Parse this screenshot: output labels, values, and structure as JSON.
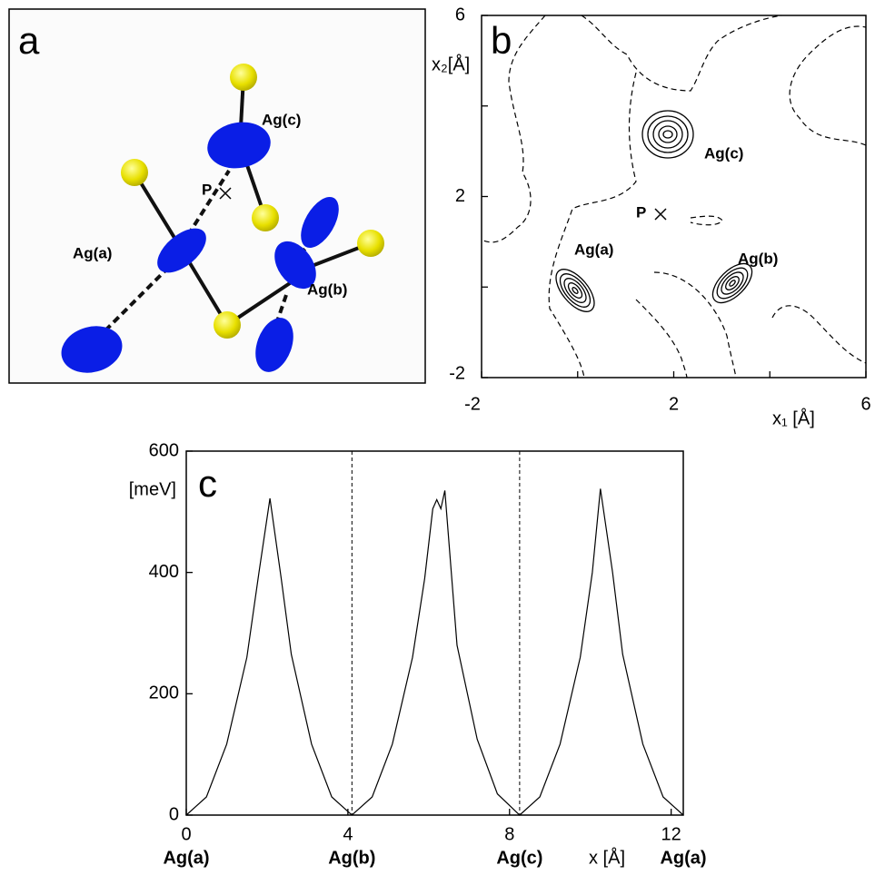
{
  "panel_a": {
    "label": "a",
    "atoms": [
      "Ag(a)",
      "Ag(b)",
      "Ag(c)",
      "P"
    ]
  },
  "chart_data": [
    {
      "type": "contour",
      "panel_label": "b",
      "xlabel": "x₁ [Å]",
      "ylabel": "x₂[Å]",
      "xlim": [
        -2,
        6
      ],
      "ylim": [
        -2,
        6
      ],
      "xticks": [
        -2,
        {
          "value": 0,
          "label": null
        },
        2,
        {
          "value": 4,
          "label": null
        },
        6
      ],
      "yticks": [
        -2,
        {
          "value": 0,
          "label": null
        },
        2,
        {
          "value": 4,
          "label": null
        },
        6
      ],
      "annotations": [
        "Ag(a)",
        "Ag(b)",
        "Ag(c)",
        "P"
      ]
    },
    {
      "type": "line",
      "panel_label": "c",
      "ylabel": "[meV]",
      "xlabel": "x [Å]",
      "xlim": [
        0,
        12.3
      ],
      "ylim": [
        0,
        600
      ],
      "xticks": [
        0,
        4,
        8,
        12
      ],
      "yticks": [
        0,
        200,
        400,
        600
      ],
      "site_ticks": [
        {
          "value": 0,
          "label": "Ag(a)"
        },
        {
          "value": 4.1,
          "label": "Ag(b)"
        },
        {
          "value": 8.25,
          "label": "Ag(c)"
        },
        {
          "value": 12.3,
          "label": "Ag(a)"
        }
      ],
      "color": "#000000",
      "x": [
        0,
        0.5,
        1,
        1.5,
        1.8,
        2.07,
        2.35,
        2.6,
        3.1,
        3.6,
        4.1,
        4.6,
        5.1,
        5.6,
        5.9,
        6.1,
        6.2,
        6.3,
        6.4,
        6.7,
        7.2,
        7.7,
        8.25,
        8.75,
        9.25,
        9.75,
        10.05,
        10.25,
        10.55,
        10.8,
        11.3,
        11.8,
        12.3
      ],
      "values": [
        0,
        30,
        117,
        260,
        400,
        522,
        390,
        265,
        117,
        30,
        0,
        30,
        117,
        260,
        390,
        505,
        520,
        505,
        535,
        280,
        125,
        35,
        0,
        30,
        117,
        260,
        400,
        538,
        400,
        265,
        117,
        30,
        0
      ]
    }
  ]
}
